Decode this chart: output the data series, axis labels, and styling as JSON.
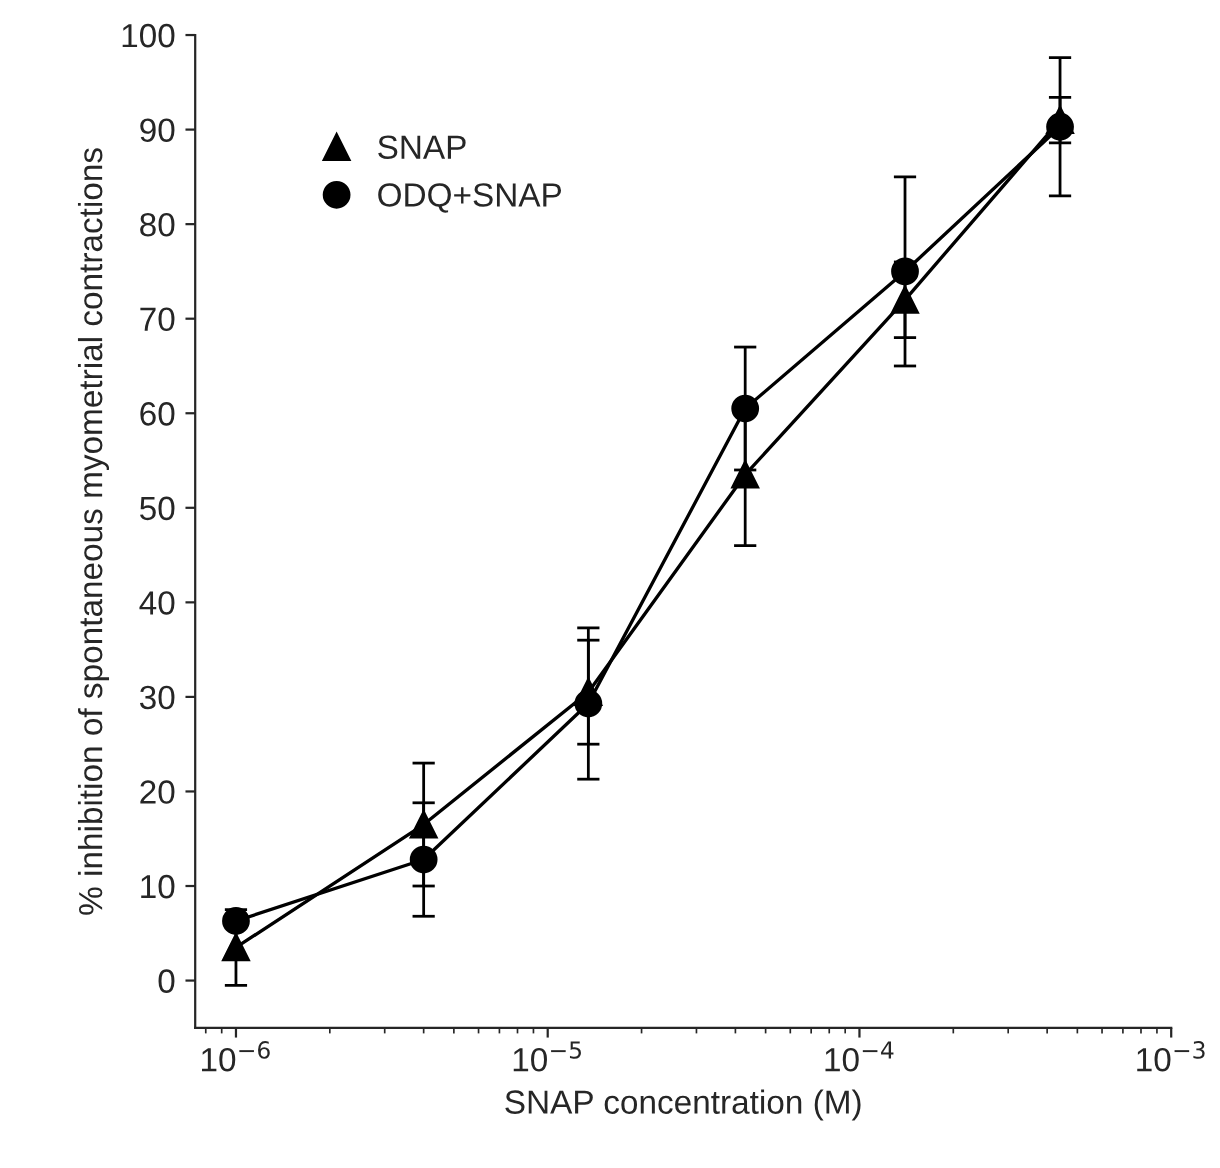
{
  "chart_data": {
    "type": "line",
    "xlabel": "SNAP concentration (M)",
    "ylabel": "% inhibition of spontaneous myometrial contractions",
    "x": [
      1e-06,
      4e-06,
      1.35e-05,
      4.3e-05,
      0.00014,
      0.00044
    ],
    "series": [
      {
        "name": "SNAP",
        "color": "#000000",
        "marker": "triangle",
        "values": [
          3.5,
          16.5,
          30.5,
          53.5,
          72,
          91
        ],
        "errors": [
          4,
          6.5,
          5.5,
          7.5,
          4,
          2.4
        ]
      },
      {
        "name": "ODQ+SNAP",
        "color": "#000000",
        "marker": "circle",
        "values": [
          6.3,
          12.8,
          29.3,
          60.5,
          75,
          90.3
        ],
        "errors": [
          0.5,
          6,
          8,
          6.5,
          10,
          7.3
        ]
      }
    ],
    "log": "x",
    "xlim": [
      7.4e-07,
      0.001
    ],
    "xticks": [
      {
        "value": 1e-06,
        "label": "10$^{−6}$"
      },
      {
        "value": 1e-05,
        "label": "10$^{−5}$"
      },
      {
        "value": 0.0001,
        "label": "10$^{−4}$"
      },
      {
        "value": 0.001,
        "label": "10$^{−3}$"
      }
    ],
    "ylim": [
      -5,
      100
    ],
    "yticks": [
      0,
      10,
      20,
      30,
      40,
      50,
      60,
      70,
      80,
      90,
      100
    ],
    "grid": false,
    "legend": "top left",
    "line_style": "solid"
  }
}
